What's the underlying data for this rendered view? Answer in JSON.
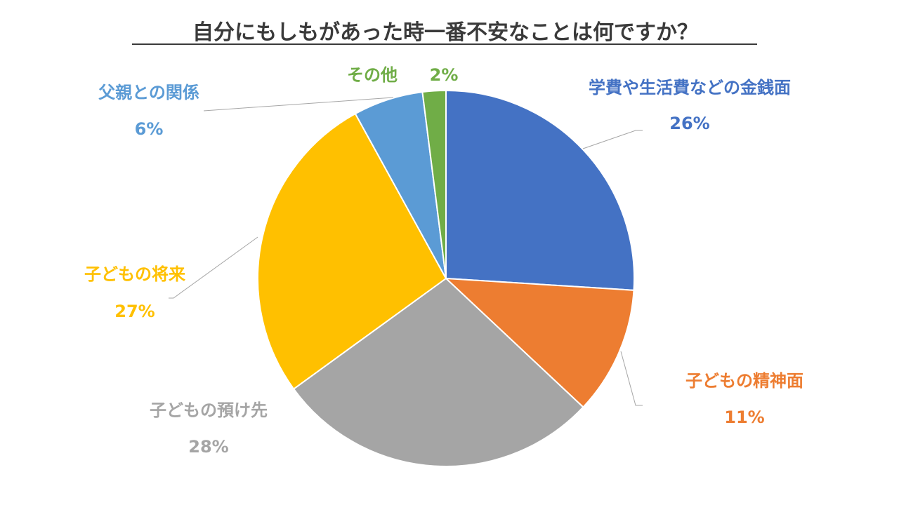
{
  "chart_data": {
    "type": "pie",
    "title": "自分にもしもがあった時一番不安なことは何ですか？",
    "slices": [
      {
        "label": "学費や生活費などの金銭面",
        "value": 26,
        "display": "26%",
        "color": "#4472C4"
      },
      {
        "label": "子どもの精神面",
        "value": 11,
        "display": "11%",
        "color": "#ED7D31"
      },
      {
        "label": "子どもの預け先",
        "value": 28,
        "display": "28%",
        "color": "#A5A5A5"
      },
      {
        "label": "子どもの将来",
        "value": 27,
        "display": "27%",
        "color": "#FFC000"
      },
      {
        "label": "父親との関係",
        "value": 6,
        "display": "6%",
        "color": "#5B9BD5"
      },
      {
        "label": "その他",
        "value": 2,
        "display": "2%",
        "color": "#70AD47"
      }
    ],
    "start_angle": "12 o'clock",
    "direction": "clockwise",
    "legend": "none",
    "data_labels": "outside with leader lines"
  }
}
